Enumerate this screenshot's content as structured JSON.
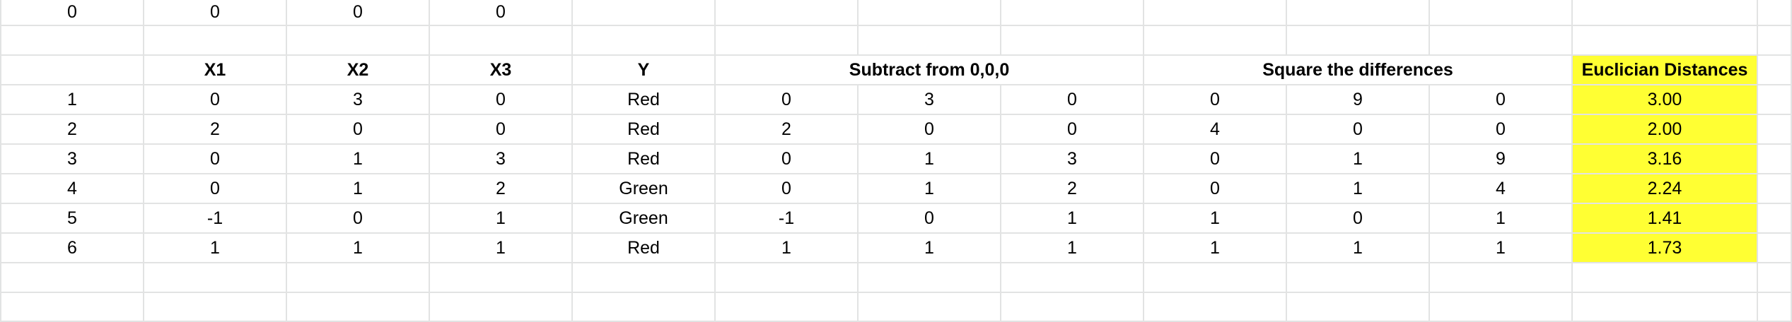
{
  "sheet": {
    "highlight_color": "#ffff33",
    "gridline_color": "#e2e3e3",
    "top_row": [
      "0",
      "0",
      "0",
      "0"
    ],
    "headers": {
      "x1": "X1",
      "x2": "X2",
      "x3": "X3",
      "y": "Y",
      "subtract": "Subtract from 0,0,0",
      "square": "Square the differences",
      "distance": "Euclician Distances"
    },
    "rows": [
      {
        "id": "1",
        "x1": "0",
        "x2": "3",
        "x3": "0",
        "y": "Red",
        "s1": "0",
        "s2": "3",
        "s3": "0",
        "q1": "0",
        "q2": "9",
        "q3": "0",
        "d": "3.00"
      },
      {
        "id": "2",
        "x1": "2",
        "x2": "0",
        "x3": "0",
        "y": "Red",
        "s1": "2",
        "s2": "0",
        "s3": "0",
        "q1": "4",
        "q2": "0",
        "q3": "0",
        "d": "2.00"
      },
      {
        "id": "3",
        "x1": "0",
        "x2": "1",
        "x3": "3",
        "y": "Red",
        "s1": "0",
        "s2": "1",
        "s3": "3",
        "q1": "0",
        "q2": "1",
        "q3": "9",
        "d": "3.16"
      },
      {
        "id": "4",
        "x1": "0",
        "x2": "1",
        "x3": "2",
        "y": "Green",
        "s1": "0",
        "s2": "1",
        "s3": "2",
        "q1": "0",
        "q2": "1",
        "q3": "4",
        "d": "2.24"
      },
      {
        "id": "5",
        "x1": "-1",
        "x2": "0",
        "x3": "1",
        "y": "Green",
        "s1": "-1",
        "s2": "0",
        "s3": "1",
        "q1": "1",
        "q2": "0",
        "q3": "1",
        "d": "1.41"
      },
      {
        "id": "6",
        "x1": "1",
        "x2": "1",
        "x3": "1",
        "y": "Red",
        "s1": "1",
        "s2": "1",
        "s3": "1",
        "q1": "1",
        "q2": "1",
        "q3": "1",
        "d": "1.73"
      }
    ]
  }
}
